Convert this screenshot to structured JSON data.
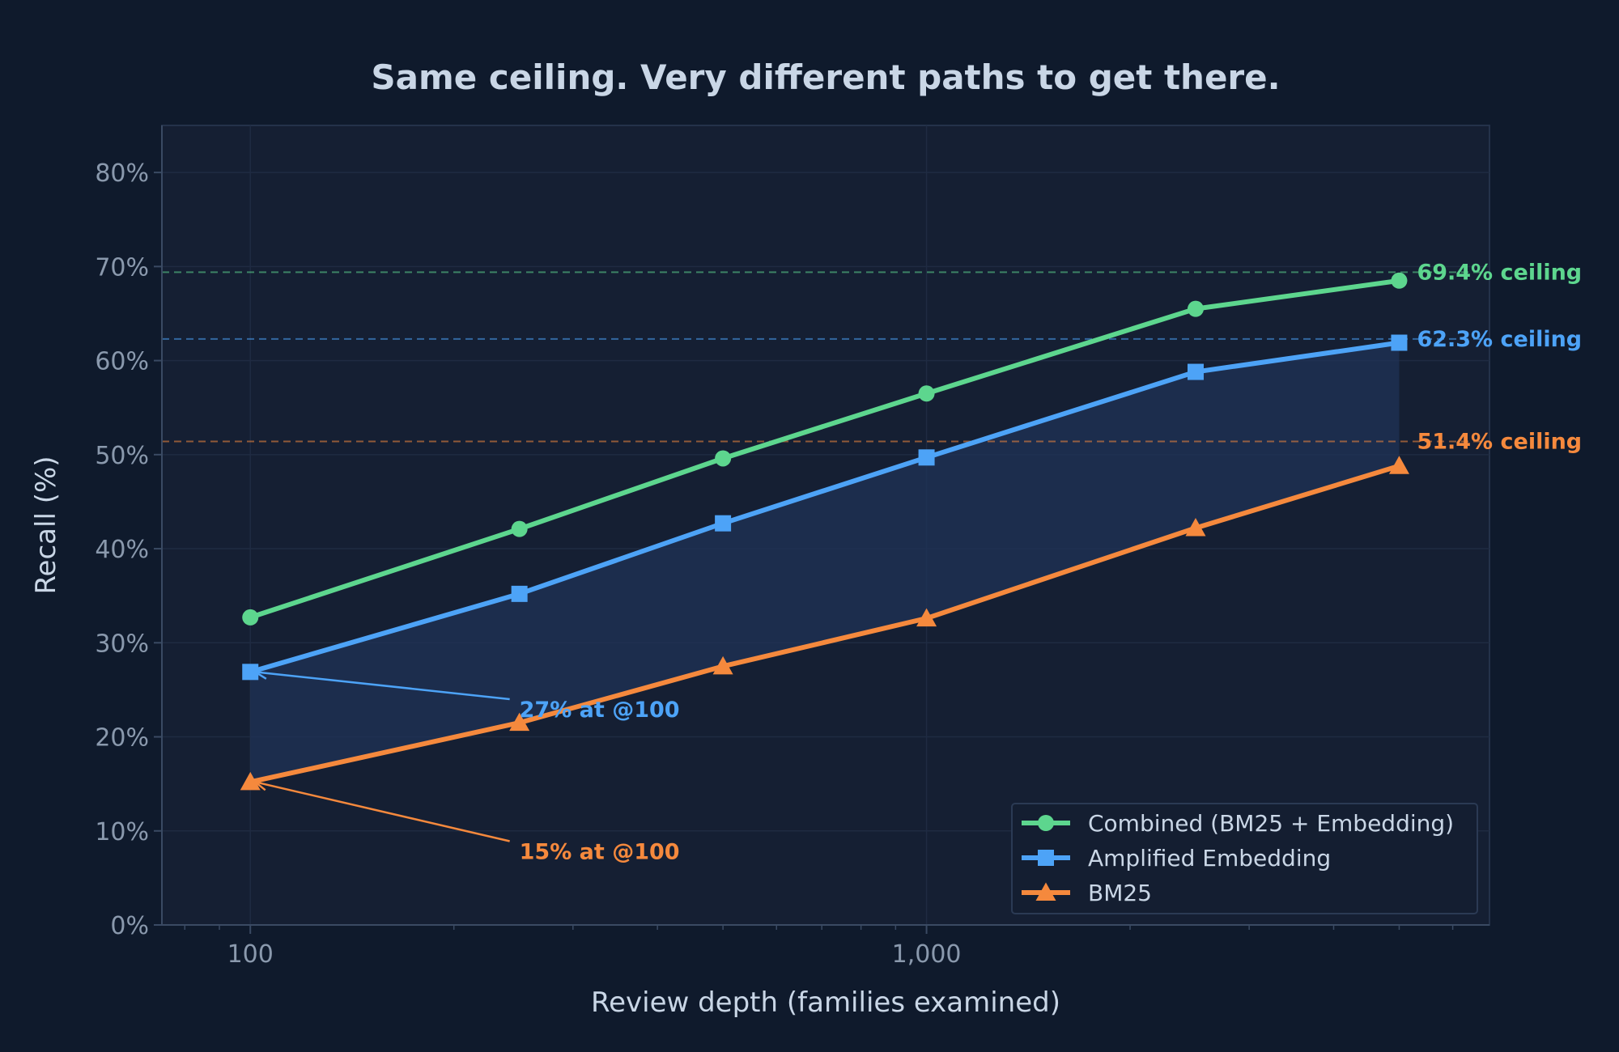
{
  "chart_data": {
    "type": "line",
    "title": "Same ceiling. Very different paths to get there.",
    "xlabel": "Review depth (families examined)",
    "ylabel": "Recall (%)",
    "xscale": "log",
    "xlim": [
      74,
      6800
    ],
    "ylim": [
      0,
      85
    ],
    "x_ticks": [
      {
        "value": 100,
        "label": "100"
      },
      {
        "value": 1000,
        "label": "1,000"
      }
    ],
    "y_ticks": [
      {
        "value": 0,
        "label": "0%"
      },
      {
        "value": 10,
        "label": "10%"
      },
      {
        "value": 20,
        "label": "20%"
      },
      {
        "value": 30,
        "label": "30%"
      },
      {
        "value": 40,
        "label": "40%"
      },
      {
        "value": 50,
        "label": "50%"
      },
      {
        "value": 60,
        "label": "60%"
      },
      {
        "value": 70,
        "label": "70%"
      },
      {
        "value": 80,
        "label": "80%"
      }
    ],
    "grid": true,
    "x": [
      100,
      250,
      500,
      1000,
      2500,
      5000
    ],
    "series": [
      {
        "name": "Combined (BM25 + Embedding)",
        "color": "#5dd68e",
        "marker": "circle",
        "values": [
          32.7,
          42.1,
          49.6,
          56.5,
          65.5,
          68.5
        ]
      },
      {
        "name": "Amplified Embedding",
        "color": "#4da3f7",
        "marker": "square",
        "values": [
          26.9,
          35.2,
          42.7,
          49.7,
          58.8,
          61.9
        ]
      },
      {
        "name": "BM25",
        "color": "#f5893d",
        "marker": "triangle",
        "values": [
          15.2,
          21.5,
          27.5,
          32.6,
          42.2,
          48.8
        ]
      }
    ],
    "ceilings": [
      {
        "value": 69.4,
        "label": "69.4% ceiling",
        "color": "#5dd68e"
      },
      {
        "value": 62.3,
        "label": "62.3% ceiling",
        "color": "#4da3f7"
      },
      {
        "value": 51.4,
        "label": "51.4% ceiling",
        "color": "#f5893d"
      }
    ],
    "annotations": [
      {
        "text": "27% at @100",
        "target_x": 100,
        "target_y": 26.9,
        "text_x": 250,
        "text_y": 22.8,
        "color": "#4da3f7"
      },
      {
        "text": "15% at @100",
        "target_x": 100,
        "target_y": 15.2,
        "text_x": 250,
        "text_y": 7.7,
        "color": "#f5893d"
      }
    ],
    "fill_between": {
      "upper": "Amplified Embedding",
      "lower": "BM25",
      "color": "#1f3358"
    },
    "legend_position": "lower-right"
  }
}
